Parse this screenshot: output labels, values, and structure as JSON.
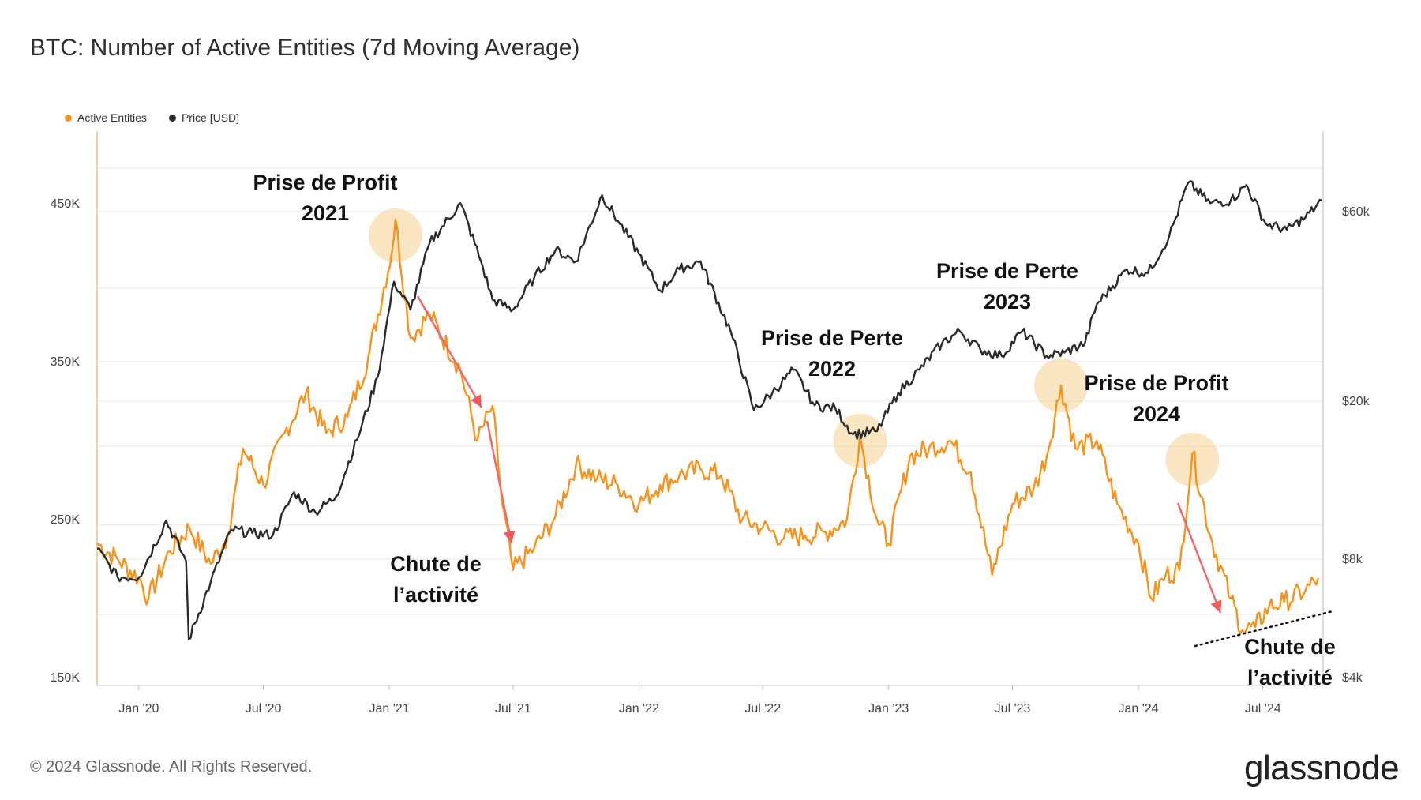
{
  "chart_data": {
    "type": "line",
    "title": "BTC: Number of Active Entities (7d Moving Average)",
    "legend": [
      {
        "name": "Active Entities",
        "color": "#f7931a"
      },
      {
        "name": "Price [USD]",
        "color": "#2b2b2b"
      }
    ],
    "x_ticks": [
      "Jan '20",
      "Jul '20",
      "Jan '21",
      "Jul '21",
      "Jan '22",
      "Jul '22",
      "Jan '23",
      "Jul '23",
      "Jan '24",
      "Jul '24"
    ],
    "x_range": [
      "2019-11",
      "2024-09"
    ],
    "y_left": {
      "label": "Active Entities",
      "ticks": [
        "450K",
        "350K",
        "250K",
        "150K"
      ],
      "range": [
        150000,
        500000
      ]
    },
    "y_right": {
      "label": "Price [USD]",
      "scale": "log",
      "ticks": [
        "$60k",
        "$20k",
        "$8k",
        "$4k"
      ],
      "range": [
        4000,
        90000
      ]
    },
    "series": [
      {
        "name": "Active Entities",
        "color": "#f7931a",
        "points": [
          [
            "2019-11-01",
            235000
          ],
          [
            "2019-12-01",
            225000
          ],
          [
            "2020-01-01",
            213000
          ],
          [
            "2020-01-15",
            200000
          ],
          [
            "2020-02-15",
            230000
          ],
          [
            "2020-03-15",
            245000
          ],
          [
            "2020-04-15",
            222000
          ],
          [
            "2020-05-10",
            240000
          ],
          [
            "2020-06-01",
            295000
          ],
          [
            "2020-07-01",
            272000
          ],
          [
            "2020-08-01",
            305000
          ],
          [
            "2020-09-01",
            330000
          ],
          [
            "2020-10-01",
            305000
          ],
          [
            "2020-11-01",
            315000
          ],
          [
            "2020-12-01",
            352000
          ],
          [
            "2021-01-05",
            420000
          ],
          [
            "2021-01-10",
            440000
          ],
          [
            "2021-02-01",
            365000
          ],
          [
            "2021-03-01",
            380000
          ],
          [
            "2021-04-15",
            345000
          ],
          [
            "2021-05-10",
            300000
          ],
          [
            "2021-06-01",
            322000
          ],
          [
            "2021-06-15",
            260000
          ],
          [
            "2021-07-01",
            218000
          ],
          [
            "2021-08-01",
            232000
          ],
          [
            "2021-09-01",
            252000
          ],
          [
            "2021-10-01",
            285000
          ],
          [
            "2021-11-01",
            276000
          ],
          [
            "2021-12-01",
            272000
          ],
          [
            "2022-01-01",
            260000
          ],
          [
            "2022-02-01",
            272000
          ],
          [
            "2022-03-01",
            278000
          ],
          [
            "2022-04-01",
            282000
          ],
          [
            "2022-05-01",
            278000
          ],
          [
            "2022-06-01",
            250000
          ],
          [
            "2022-07-01",
            245000
          ],
          [
            "2022-08-01",
            238000
          ],
          [
            "2022-09-01",
            240000
          ],
          [
            "2022-10-01",
            242000
          ],
          [
            "2022-11-01",
            250000
          ],
          [
            "2022-11-20",
            303000
          ],
          [
            "2022-12-15",
            250000
          ],
          [
            "2023-01-01",
            235000
          ],
          [
            "2023-02-01",
            290000
          ],
          [
            "2023-03-01",
            295000
          ],
          [
            "2023-04-01",
            300000
          ],
          [
            "2023-05-01",
            280000
          ],
          [
            "2023-06-01",
            215000
          ],
          [
            "2023-07-01",
            260000
          ],
          [
            "2023-08-01",
            270000
          ],
          [
            "2023-08-20",
            290000
          ],
          [
            "2023-09-10",
            335000
          ],
          [
            "2023-10-01",
            295000
          ],
          [
            "2023-11-01",
            300000
          ],
          [
            "2023-12-01",
            260000
          ],
          [
            "2024-01-01",
            235000
          ],
          [
            "2024-01-20",
            200000
          ],
          [
            "2024-02-10",
            215000
          ],
          [
            "2024-03-01",
            218000
          ],
          [
            "2024-03-20",
            292000
          ],
          [
            "2024-04-15",
            240000
          ],
          [
            "2024-05-15",
            200000
          ],
          [
            "2024-06-01",
            180000
          ],
          [
            "2024-06-20",
            182000
          ],
          [
            "2024-07-10",
            195000
          ],
          [
            "2024-08-01",
            198000
          ],
          [
            "2024-09-01",
            205000
          ],
          [
            "2024-09-20",
            213000
          ]
        ]
      },
      {
        "name": "Price [USD]",
        "color": "#2b2b2b",
        "points": [
          [
            "2019-11-01",
            8500
          ],
          [
            "2019-12-01",
            7200
          ],
          [
            "2020-01-01",
            7200
          ],
          [
            "2020-02-10",
            10000
          ],
          [
            "2020-03-10",
            7900
          ],
          [
            "2020-03-14",
            5000
          ],
          [
            "2020-04-15",
            7000
          ],
          [
            "2020-05-15",
            9500
          ],
          [
            "2020-06-15",
            9300
          ],
          [
            "2020-07-15",
            9200
          ],
          [
            "2020-08-15",
            11800
          ],
          [
            "2020-09-15",
            10500
          ],
          [
            "2020-10-15",
            11500
          ],
          [
            "2020-11-15",
            16000
          ],
          [
            "2020-12-15",
            23000
          ],
          [
            "2021-01-08",
            40000
          ],
          [
            "2021-02-01",
            34000
          ],
          [
            "2021-03-01",
            50000
          ],
          [
            "2021-04-15",
            63000
          ],
          [
            "2021-05-15",
            45000
          ],
          [
            "2021-06-01",
            36000
          ],
          [
            "2021-07-01",
            34000
          ],
          [
            "2021-08-01",
            41000
          ],
          [
            "2021-09-01",
            48000
          ],
          [
            "2021-10-01",
            45000
          ],
          [
            "2021-11-08",
            66000
          ],
          [
            "2021-12-01",
            57000
          ],
          [
            "2022-01-01",
            47000
          ],
          [
            "2022-02-01",
            38000
          ],
          [
            "2022-03-01",
            43000
          ],
          [
            "2022-04-01",
            45000
          ],
          [
            "2022-05-15",
            30000
          ],
          [
            "2022-06-18",
            19000
          ],
          [
            "2022-07-15",
            21000
          ],
          [
            "2022-08-15",
            24000
          ],
          [
            "2022-09-15",
            19500
          ],
          [
            "2022-10-15",
            19200
          ],
          [
            "2022-11-10",
            16500
          ],
          [
            "2022-12-15",
            16800
          ],
          [
            "2023-01-15",
            21000
          ],
          [
            "2023-02-15",
            24000
          ],
          [
            "2023-03-20",
            28000
          ],
          [
            "2023-04-15",
            30000
          ],
          [
            "2023-05-15",
            27000
          ],
          [
            "2023-06-15",
            26000
          ],
          [
            "2023-07-15",
            30000
          ],
          [
            "2023-08-20",
            26000
          ],
          [
            "2023-09-15",
            26500
          ],
          [
            "2023-10-15",
            28000
          ],
          [
            "2023-11-01",
            35000
          ],
          [
            "2023-12-15",
            43000
          ],
          [
            "2024-01-15",
            42000
          ],
          [
            "2024-02-15",
            52000
          ],
          [
            "2024-03-14",
            71000
          ],
          [
            "2024-04-15",
            63000
          ],
          [
            "2024-05-15",
            64000
          ],
          [
            "2024-06-07",
            70000
          ],
          [
            "2024-07-05",
            56000
          ],
          [
            "2024-08-05",
            54000
          ],
          [
            "2024-09-01",
            58000
          ],
          [
            "2024-09-25",
            64000
          ]
        ]
      }
    ],
    "annotations": [
      {
        "lines": [
          "Prise de Profit",
          "2021"
        ],
        "date": "2021-01-10"
      },
      {
        "lines": [
          "Prise de Perte",
          "2022"
        ],
        "date": "2022-11-20"
      },
      {
        "lines": [
          "Prise de Perte",
          "2023"
        ],
        "date": "2023-09-10"
      },
      {
        "lines": [
          "Prise de Profit",
          "2024"
        ],
        "date": "2024-03-20"
      },
      {
        "lines": [
          "Chute de",
          "l’activité"
        ],
        "date": "2021-06-15"
      },
      {
        "lines": [
          "Chute de",
          "l’activité"
        ],
        "date": "2024-07-01"
      }
    ]
  },
  "footer": {
    "copyright": "© 2024 Glassnode. All Rights Reserved.",
    "brand": "glassnode"
  }
}
